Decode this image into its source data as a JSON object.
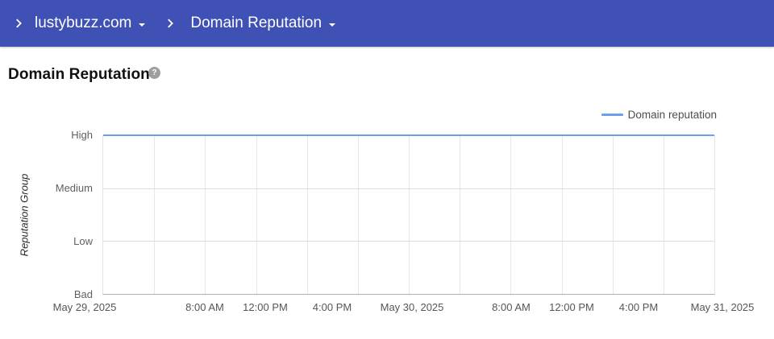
{
  "header": {
    "breadcrumbs": [
      {
        "label": "lustybuzz.com"
      },
      {
        "label": "Domain Reputation"
      }
    ]
  },
  "page": {
    "title": "Domain Reputation",
    "help_icon": "?"
  },
  "legend": {
    "items": [
      {
        "label": "Domain reputation",
        "color": "#6d9eeb"
      }
    ]
  },
  "chart_data": {
    "type": "line",
    "title": "Domain Reputation",
    "xlabel": "",
    "ylabel": "Reputation Group",
    "y_categories": [
      "High",
      "Medium",
      "Low",
      "Bad"
    ],
    "x_ticks": [
      "May 29, 2025",
      "8:00 AM",
      "12:00 PM",
      "4:00 PM",
      "May 30, 2025",
      "8:00 AM",
      "12:00 PM",
      "4:00 PM",
      "May 31, 2025"
    ],
    "x_range": [
      "May 29, 2025 12:00 AM",
      "May 31, 2025 12:00 AM"
    ],
    "gridline_interval_hours": 4,
    "grid": true,
    "legend_position": "top-right",
    "series": [
      {
        "name": "Domain reputation",
        "color": "#6d9eeb",
        "x": [
          "May 29, 2025 12:00 AM",
          "May 31, 2025 12:00 AM"
        ],
        "values": [
          "High",
          "High"
        ]
      }
    ]
  },
  "colors": {
    "header_bg": "#3f51b5",
    "series_blue": "#6d9eeb",
    "gridline": "#e7e7e7",
    "axis_line": "#b0b0b0",
    "tick_label": "#5f5f5f"
  }
}
